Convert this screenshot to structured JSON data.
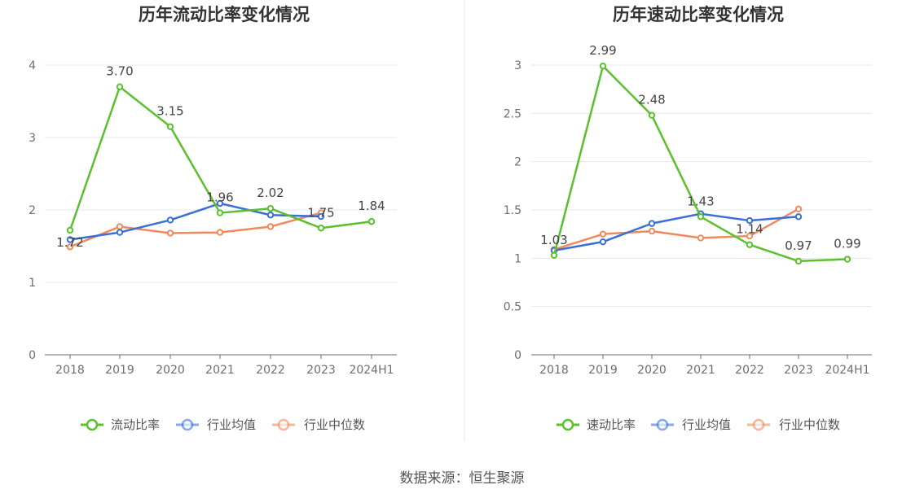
{
  "source_label": "数据来源：恒生聚源",
  "colors": {
    "primary": "#59c12b",
    "avg": "#3a6fd8",
    "median": "#f08a5d"
  },
  "chart_data": [
    {
      "type": "line",
      "title": "历年流动比率变化情况",
      "categories": [
        "2018",
        "2019",
        "2020",
        "2021",
        "2022",
        "2023",
        "2024H1"
      ],
      "ylim": [
        0,
        4
      ],
      "yticks": [
        "0",
        "1",
        "2",
        "3",
        "4"
      ],
      "ytick_values": [
        0,
        1,
        2,
        3,
        4
      ],
      "grid": true,
      "legend_position": "bottom",
      "series": [
        {
          "name": "流动比率",
          "color": "#59c12b",
          "values": [
            1.72,
            3.7,
            3.15,
            1.96,
            2.02,
            1.75,
            1.84
          ],
          "labels": [
            "1.72",
            "3.70",
            "3.15",
            "1.96",
            "2.02",
            "1.75",
            "1.84"
          ]
        },
        {
          "name": "行业均值",
          "color": "#3a6fd8",
          "values": [
            1.59,
            1.69,
            1.86,
            2.09,
            1.93,
            1.91,
            null
          ]
        },
        {
          "name": "行业中位数",
          "color": "#f08a5d",
          "values": [
            1.49,
            1.77,
            1.68,
            1.69,
            1.77,
            1.96,
            null
          ]
        }
      ]
    },
    {
      "type": "line",
      "title": "历年速动比率变化情况",
      "categories": [
        "2018",
        "2019",
        "2020",
        "2021",
        "2022",
        "2023",
        "2024H1"
      ],
      "ylim": [
        0,
        3
      ],
      "yticks": [
        "0",
        "0.5",
        "1",
        "1.5",
        "2",
        "2.5",
        "3"
      ],
      "ytick_values": [
        0,
        0.5,
        1,
        1.5,
        2,
        2.5,
        3
      ],
      "grid": true,
      "legend_position": "bottom",
      "series": [
        {
          "name": "速动比率",
          "color": "#59c12b",
          "values": [
            1.03,
            2.99,
            2.48,
            1.43,
            1.14,
            0.97,
            0.99
          ],
          "labels": [
            "1.03",
            "2.99",
            "2.48",
            "1.43",
            "1.14",
            "0.97",
            "0.99"
          ]
        },
        {
          "name": "行业均值",
          "color": "#3a6fd8",
          "values": [
            1.08,
            1.17,
            1.36,
            1.46,
            1.39,
            1.43,
            null
          ]
        },
        {
          "name": "行业中位数",
          "color": "#f08a5d",
          "values": [
            1.09,
            1.25,
            1.28,
            1.21,
            1.23,
            1.51,
            null
          ]
        }
      ]
    }
  ]
}
